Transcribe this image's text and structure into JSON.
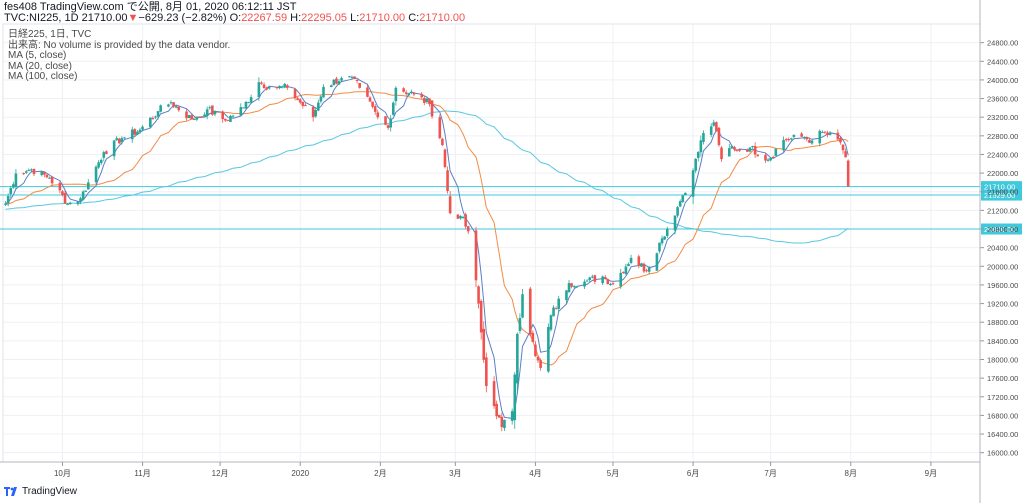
{
  "header": {
    "line1": "fes408 TradingView.com で公開, 8月 01, 2020 06:12:11 JST",
    "symbol": "TVC:NI225, 1D 21710.00",
    "change_arrow": "▼",
    "change": "−629.23 (−2.82%)",
    "o_label": "O:",
    "o_value": "22267.59",
    "h_label": "H:",
    "h_value": "22295.05",
    "l_label": "L:",
    "l_value": "21710.00",
    "c_label": "C:",
    "c_value": "21710.00"
  },
  "info": {
    "title": "日経225, 1日, TVC",
    "volume_note": "出来高: No volume is provided by the data vendor.",
    "ma_labels": [
      "MA (5, close)",
      "MA (20, close)",
      "MA (100, close)"
    ]
  },
  "footer": {
    "brand": "TradingView"
  },
  "colors": {
    "up": "#26a69a",
    "down": "#ef5350",
    "ma5": "#5b7ec7",
    "ma20": "#f48a46",
    "ma100": "#57c8e0",
    "hline": "#3ec9dc",
    "grid": "#eef0f3"
  },
  "chart_data": {
    "type": "candlestick",
    "ylim": [
      15800,
      25200
    ],
    "y_ticks": [
      16000,
      16400,
      16800,
      17200,
      17600,
      18000,
      18400,
      18800,
      19200,
      19600,
      20000,
      20400,
      20800,
      21200,
      21600,
      22000,
      22400,
      22800,
      23200,
      23600,
      24000,
      24400,
      24800
    ],
    "x_ticks": [
      {
        "label": "10月",
        "date": "2019-10-01"
      },
      {
        "label": "11月",
        "date": "2019-11-01"
      },
      {
        "label": "12月",
        "date": "2019-12-01"
      },
      {
        "label": "2020",
        "date": "2020-01-01"
      },
      {
        "label": "2月",
        "date": "2020-02-01"
      },
      {
        "label": "3月",
        "date": "2020-03-01"
      },
      {
        "label": "4月",
        "date": "2020-04-01"
      },
      {
        "label": "5月",
        "date": "2020-05-01"
      },
      {
        "label": "6月",
        "date": "2020-06-01"
      },
      {
        "label": "7月",
        "date": "2020-07-01"
      },
      {
        "label": "8月",
        "date": "2020-08-01"
      },
      {
        "label": "9月",
        "date": "2020-09-01"
      }
    ],
    "x_range": [
      "2019-09-08",
      "2020-09-20"
    ],
    "horizontal_lines": [
      {
        "value": 21710.0,
        "label": "21710.00"
      },
      {
        "value": 21529.0,
        "label": "21529.00"
      },
      {
        "value": 20800.0,
        "label": "20800.00"
      }
    ],
    "close_anchors": [
      [
        "2019-09-09",
        21350
      ],
      [
        "2019-09-13",
        21990
      ],
      [
        "2019-09-19",
        22080
      ],
      [
        "2019-09-26",
        21900
      ],
      [
        "2019-10-03",
        21340
      ],
      [
        "2019-10-08",
        21460
      ],
      [
        "2019-10-11",
        21800
      ],
      [
        "2019-10-17",
        22450
      ],
      [
        "2019-10-24",
        22750
      ],
      [
        "2019-10-31",
        22930
      ],
      [
        "2019-11-07",
        23330
      ],
      [
        "2019-11-12",
        23520
      ],
      [
        "2019-11-20",
        23150
      ],
      [
        "2019-11-26",
        23370
      ],
      [
        "2019-12-03",
        23130
      ],
      [
        "2019-12-10",
        23410
      ],
      [
        "2019-12-16",
        23950
      ],
      [
        "2019-12-20",
        23850
      ],
      [
        "2019-12-27",
        23830
      ],
      [
        "2020-01-06",
        23200
      ],
      [
        "2020-01-10",
        23850
      ],
      [
        "2020-01-17",
        24040
      ],
      [
        "2020-01-20",
        24080
      ],
      [
        "2020-01-24",
        23830
      ],
      [
        "2020-01-31",
        23200
      ],
      [
        "2020-02-04",
        22970
      ],
      [
        "2020-02-07",
        23830
      ],
      [
        "2020-02-14",
        23690
      ],
      [
        "2020-02-20",
        23480
      ],
      [
        "2020-02-25",
        22600
      ],
      [
        "2020-02-28",
        21140
      ],
      [
        "2020-03-03",
        21080
      ],
      [
        "2020-03-06",
        20750
      ],
      [
        "2020-03-09",
        19700
      ],
      [
        "2020-03-13",
        17430
      ],
      [
        "2020-03-16",
        17000
      ],
      [
        "2020-03-19",
        16550
      ],
      [
        "2020-03-23",
        16890
      ],
      [
        "2020-03-25",
        18550
      ],
      [
        "2020-03-27",
        19400
      ],
      [
        "2020-04-01",
        18070
      ],
      [
        "2020-04-03",
        17820
      ],
      [
        "2020-04-07",
        18950
      ],
      [
        "2020-04-14",
        19640
      ],
      [
        "2020-04-20",
        19670
      ],
      [
        "2020-04-27",
        19780
      ],
      [
        "2020-05-01",
        19620
      ],
      [
        "2020-05-08",
        20180
      ],
      [
        "2020-05-14",
        19910
      ],
      [
        "2020-05-20",
        20600
      ],
      [
        "2020-05-26",
        21270
      ],
      [
        "2020-06-01",
        22060
      ],
      [
        "2020-06-05",
        22860
      ],
      [
        "2020-06-09",
        23090
      ],
      [
        "2020-06-12",
        22300
      ],
      [
        "2020-06-16",
        22580
      ],
      [
        "2020-06-19",
        22480
      ],
      [
        "2020-06-23",
        22550
      ],
      [
        "2020-06-30",
        22290
      ],
      [
        "2020-07-06",
        22710
      ],
      [
        "2020-07-13",
        22780
      ],
      [
        "2020-07-17",
        22700
      ],
      [
        "2020-07-21",
        22880
      ],
      [
        "2020-07-28",
        22660
      ],
      [
        "2020-07-30",
        22340
      ],
      [
        "2020-07-31",
        21710
      ]
    ],
    "ma_periods": [
      5,
      20,
      100
    ]
  }
}
